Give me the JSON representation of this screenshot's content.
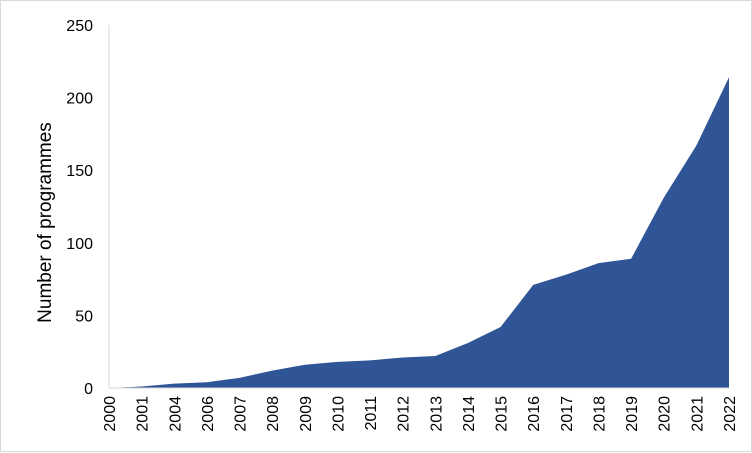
{
  "chart_data": {
    "type": "area",
    "title": "",
    "xlabel": "",
    "ylabel": "Number of programmes",
    "x": [
      "2000",
      "2001",
      "2004",
      "2006",
      "2007",
      "2008",
      "2009",
      "2010",
      "2011",
      "2012",
      "2013",
      "2014",
      "2015",
      "2016",
      "2017",
      "2018",
      "2019",
      "2020",
      "2021",
      "2022"
    ],
    "series": [
      {
        "values": [
          0,
          1,
          3,
          4,
          7,
          12,
          16,
          18,
          19,
          21,
          22,
          31,
          42,
          71,
          78,
          86,
          89,
          131,
          167,
          214
        ],
        "color": "#2f5597"
      }
    ],
    "ylim": [
      0,
      250
    ],
    "yticks": [
      "0",
      "50",
      "100",
      "150",
      "200",
      "250"
    ],
    "grid": false,
    "legend": "none"
  }
}
